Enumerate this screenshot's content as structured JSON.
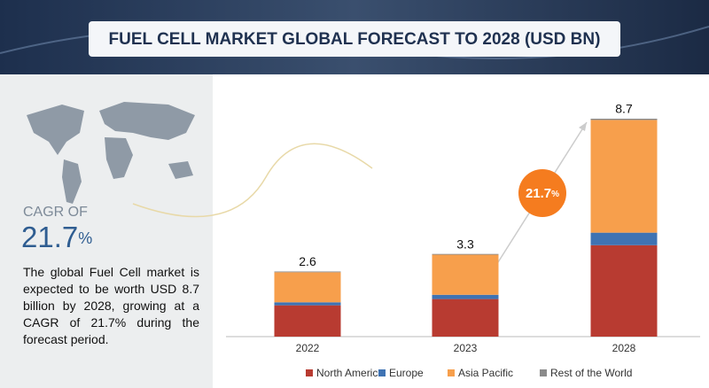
{
  "title": "FUEL CELL MARKET GLOBAL FORECAST TO 2028 (USD BN)",
  "cagr": {
    "label": "CAGR OF",
    "value": "21.7",
    "unit": "%"
  },
  "description": "The global Fuel Cell market is expected to be worth USD 8.7 billion by 2028, growing at a CAGR of 21.7% during the forecast period.",
  "chart_data": {
    "type": "stacked_bar",
    "categories": [
      "2022",
      "2023",
      "2028"
    ],
    "totals": [
      2.6,
      3.3,
      8.7
    ],
    "series": [
      {
        "name": "North America",
        "color": "#b83b31",
        "values": [
          1.25,
          1.5,
          3.65
        ]
      },
      {
        "name": "Europe",
        "color": "#3f73b3",
        "values": [
          0.12,
          0.17,
          0.5
        ]
      },
      {
        "name": "Asia Pacific",
        "color": "#f79f4c",
        "values": [
          1.2,
          1.6,
          4.5
        ]
      },
      {
        "name": "Rest of the World",
        "color": "#8a8a8a",
        "values": [
          0.03,
          0.03,
          0.05
        ]
      }
    ]
  }
}
